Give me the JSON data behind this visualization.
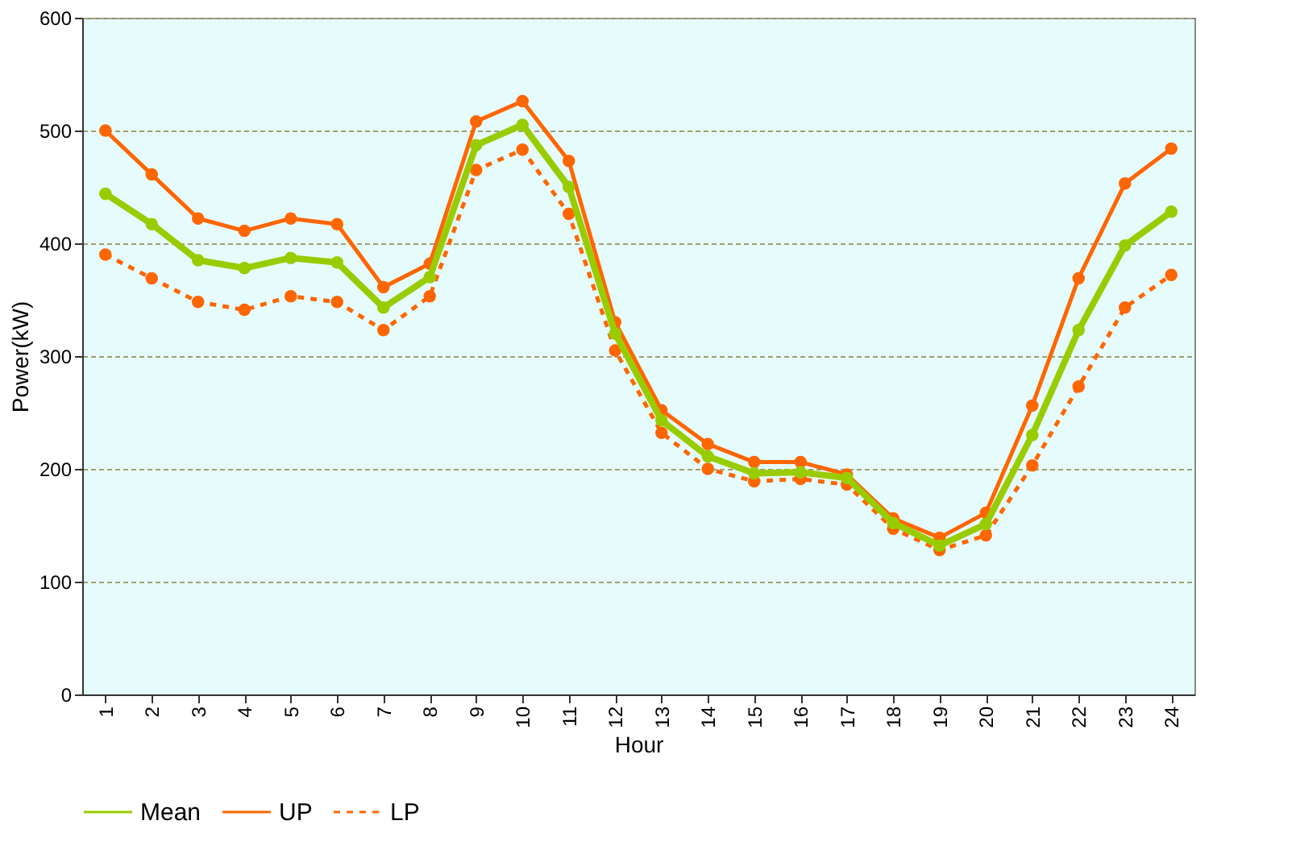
{
  "chart_data": {
    "type": "line",
    "xlabel": "Hour",
    "ylabel": "Power(kW)",
    "categories": [
      "1",
      "2",
      "3",
      "4",
      "5",
      "6",
      "7",
      "8",
      "9",
      "10",
      "11",
      "12",
      "13",
      "14",
      "15",
      "16",
      "17",
      "18",
      "19",
      "20",
      "21",
      "22",
      "23",
      "24"
    ],
    "series": [
      {
        "name": "Mean",
        "color": "#99cc00",
        "line_style": "solid",
        "values": [
          444,
          417,
          385,
          378,
          387,
          383,
          343,
          370,
          487,
          505,
          450,
          320,
          243,
          211,
          196,
          197,
          192,
          152,
          132,
          151,
          230,
          323,
          398,
          428
        ]
      },
      {
        "name": "UP",
        "color": "#ff6600",
        "line_style": "solid",
        "values": [
          500,
          461,
          422,
          411,
          422,
          417,
          361,
          382,
          508,
          526,
          473,
          330,
          252,
          222,
          206,
          206,
          195,
          156,
          139,
          161,
          256,
          369,
          453,
          484
        ]
      },
      {
        "name": "LP",
        "color": "#ff6600",
        "line_style": "dashed",
        "values": [
          390,
          369,
          348,
          341,
          353,
          348,
          323,
          353,
          465,
          483,
          426,
          305,
          232,
          200,
          189,
          191,
          186,
          147,
          128,
          141,
          203,
          273,
          343,
          372
        ]
      }
    ],
    "ylim": [
      0,
      600
    ],
    "yticks": [
      0,
      100,
      200,
      300,
      400,
      500,
      600
    ],
    "grid": "y",
    "legend": "bottom",
    "marker": "circle"
  }
}
